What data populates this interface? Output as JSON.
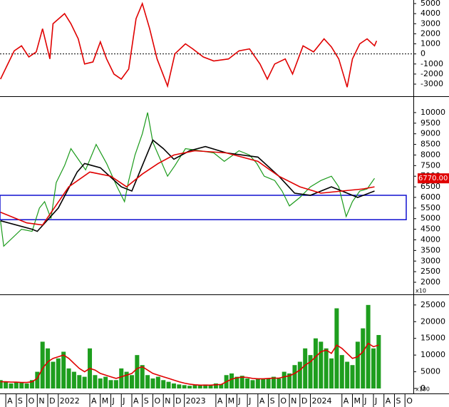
{
  "chart_data": [
    {
      "type": "line",
      "xlim": [
        -0.55,
        38.8
      ],
      "ylim": [
        -3990,
        5355
      ],
      "yticks": [
        5000,
        4000,
        3000,
        2000,
        1000,
        0,
        -1000,
        -2000,
        -3000
      ],
      "zero_line": true,
      "series": [
        {
          "color": "#e00000",
          "x": [
            -0.5,
            0.1,
            0.8,
            1.5,
            2.2,
            2.9,
            3.5,
            4.2,
            4.5,
            5.6,
            6.2,
            6.9,
            7.5,
            8.3,
            9,
            9.6,
            10.3,
            11,
            11.7,
            12.4,
            13,
            13.7,
            14.4,
            15.4,
            16.1,
            17.1,
            17.8,
            18.8,
            19.8,
            21.2,
            22.2,
            23.2,
            24.2,
            24.9,
            25.6,
            26.6,
            27.3,
            28.3,
            29.3,
            30.3,
            31,
            31.7,
            32.5,
            33,
            33.7,
            34.4,
            35.1,
            35.3
          ],
          "values": [
            -2500,
            -1200,
            300,
            800,
            -300,
            200,
            2500,
            -500,
            3000,
            4000,
            3000,
            1500,
            -1000,
            -800,
            1200,
            -500,
            -2000,
            -2500,
            -1500,
            3500,
            5000,
            2500,
            -500,
            -3200,
            0,
            1000,
            500,
            -300,
            -700,
            -500,
            300,
            500,
            -1000,
            -2500,
            -1000,
            -500,
            -2000,
            800,
            200,
            1500,
            700,
            -500,
            -3300,
            -500,
            1000,
            1500,
            800,
            1300
          ]
        }
      ]
    },
    {
      "type": "line",
      "xlim": [
        -0.55,
        38.8
      ],
      "ylim": [
        1530,
        10670
      ],
      "yticks": [
        10000,
        9500,
        9000,
        8500,
        8000,
        7500,
        7000,
        6500,
        6000,
        5500,
        5000,
        4500,
        4000,
        3500,
        3000,
        2500,
        2000
      ],
      "scale_label": "x10",
      "last_price_label": "6770.00",
      "highlight_range": [
        4950,
        6100
      ],
      "highlight_color": "#1010d0",
      "series": [
        {
          "color": "#1a9a1a",
          "x": [
            -0.5,
            -0.2,
            1.5,
            2.5,
            3.2,
            3.7,
            4.3,
            4.8,
            5.6,
            6.2,
            6.9,
            7.6,
            8.6,
            9.6,
            10.6,
            11.3,
            11.7,
            12.3,
            13,
            13.5,
            14,
            14.7,
            15.4,
            16.1,
            17.1,
            18.5,
            19.8,
            20.8,
            22.2,
            23.2,
            23.9,
            24.6,
            25.6,
            26.3,
            27,
            28,
            29,
            30,
            31,
            31.7,
            32.4,
            33,
            33.7,
            34.4,
            35.1
          ],
          "values": [
            4900,
            3700,
            4500,
            4400,
            5500,
            5800,
            5000,
            6700,
            7500,
            8300,
            7800,
            7300,
            8500,
            7600,
            6500,
            5800,
            6800,
            8000,
            9000,
            10000,
            8600,
            7800,
            7000,
            7500,
            8300,
            8200,
            8100,
            7700,
            8200,
            8000,
            7600,
            7000,
            6800,
            6300,
            5600,
            6000,
            6500,
            6800,
            7000,
            6500,
            5100,
            5800,
            6300,
            6400,
            6900
          ]
        },
        {
          "color": "#000000",
          "x": [
            -0.5,
            2.5,
            3,
            5,
            6.8,
            7.5,
            9,
            11,
            12,
            13,
            14,
            15,
            16,
            17.5,
            19,
            21,
            24,
            26,
            27.5,
            29,
            31,
            32,
            33.5,
            35.1
          ],
          "values": [
            4900,
            4500,
            4400,
            5500,
            7200,
            7600,
            7400,
            6500,
            6300,
            7500,
            8700,
            8300,
            7800,
            8200,
            8400,
            8100,
            7900,
            7000,
            6200,
            6100,
            6500,
            6300,
            6000,
            6300
          ]
        },
        {
          "color": "#e00000",
          "x": [
            -0.5,
            2,
            3.5,
            6,
            8,
            10,
            11.5,
            13,
            14.5,
            16,
            18,
            21,
            24,
            26,
            28,
            30,
            32,
            34,
            35.1
          ],
          "values": [
            5300,
            4800,
            4700,
            6500,
            7200,
            7000,
            6500,
            7100,
            7600,
            8000,
            8200,
            8100,
            7700,
            7000,
            6500,
            6200,
            6300,
            6400,
            6500
          ]
        }
      ]
    },
    {
      "type": "bar",
      "xlim": [
        -0.55,
        38.8
      ],
      "ylim": [
        -640,
        27100
      ],
      "yticks": [
        25000,
        20000,
        15000,
        10000,
        5000,
        0
      ],
      "scale_label": "x100",
      "xticks": [
        {
          "value": 0,
          "label": "A"
        },
        {
          "value": 1,
          "label": "S"
        },
        {
          "value": 2,
          "label": "O"
        },
        {
          "value": 3,
          "label": "N"
        },
        {
          "value": 4,
          "label": "D"
        },
        {
          "value": 5,
          "label": "2022"
        },
        {
          "value": 8,
          "label": "A"
        },
        {
          "value": 9,
          "label": "M"
        },
        {
          "value": 10,
          "label": "J"
        },
        {
          "value": 11,
          "label": "J"
        },
        {
          "value": 12,
          "label": "A"
        },
        {
          "value": 13,
          "label": "S"
        },
        {
          "value": 14,
          "label": "O"
        },
        {
          "value": 15,
          "label": "N"
        },
        {
          "value": 16,
          "label": "D"
        },
        {
          "value": 17,
          "label": "2023"
        },
        {
          "value": 20,
          "label": "A"
        },
        {
          "value": 21,
          "label": "M"
        },
        {
          "value": 22,
          "label": "J"
        },
        {
          "value": 23,
          "label": "J"
        },
        {
          "value": 24,
          "label": "A"
        },
        {
          "value": 25,
          "label": "S"
        },
        {
          "value": 26,
          "label": "O"
        },
        {
          "value": 27,
          "label": "N"
        },
        {
          "value": 28,
          "label": "D"
        },
        {
          "value": 29,
          "label": "2024"
        },
        {
          "value": 32,
          "label": "A"
        },
        {
          "value": 33,
          "label": "M"
        },
        {
          "value": 34,
          "label": "J"
        },
        {
          "value": 35,
          "label": "J"
        },
        {
          "value": 36,
          "label": "A"
        },
        {
          "value": 37,
          "label": "S"
        },
        {
          "value": 38,
          "label": "O"
        }
      ],
      "x": [
        -0.5,
        0,
        0.5,
        1,
        1.5,
        2,
        2.5,
        3,
        3.5,
        4,
        4.5,
        5,
        5.5,
        6,
        6.5,
        7,
        7.5,
        8,
        8.5,
        9,
        9.5,
        10,
        10.5,
        11,
        11.5,
        12,
        12.5,
        13,
        13.5,
        14,
        14.5,
        15,
        15.5,
        16,
        16.5,
        17,
        17.5,
        18,
        18.5,
        19,
        19.5,
        20,
        20.5,
        21,
        21.5,
        22,
        22.5,
        23,
        23.5,
        24,
        24.5,
        25,
        25.5,
        26,
        26.5,
        27,
        27.5,
        28,
        28.5,
        29,
        29.5,
        30,
        30.5,
        31,
        31.5,
        32,
        32.5,
        33,
        33.5,
        34,
        34.5,
        35,
        35.5
      ],
      "series": [
        {
          "type": "bar",
          "color": "#1e9e1e",
          "values": [
            2500,
            2000,
            1500,
            2000,
            1800,
            1500,
            2500,
            5000,
            14000,
            12000,
            8000,
            9000,
            11000,
            6000,
            5000,
            4000,
            3500,
            12000,
            4000,
            3000,
            3500,
            2500,
            2500,
            6000,
            5000,
            4000,
            10000,
            7000,
            4000,
            3000,
            3500,
            2500,
            2000,
            1500,
            1200,
            1000,
            800,
            1000,
            900,
            1200,
            1000,
            1500,
            1300,
            4000,
            4500,
            3500,
            3800,
            3000,
            2500,
            3000,
            2800,
            3000,
            3500,
            3000,
            5000,
            4500,
            7000,
            8000,
            12000,
            10000,
            15000,
            14000,
            12000,
            9000,
            24000,
            10000,
            8000,
            7000,
            14000,
            18000,
            25000,
            12000,
            16000
          ]
        },
        {
          "type": "line",
          "color": "#e00000",
          "values": [
            2000,
            2000,
            1900,
            1900,
            1800,
            1800,
            2000,
            3000,
            6000,
            8000,
            9000,
            9500,
            10000,
            9000,
            7500,
            6000,
            5000,
            6000,
            5500,
            4500,
            4000,
            3500,
            3000,
            3500,
            4000,
            4500,
            6000,
            6500,
            5500,
            4500,
            4000,
            3500,
            3000,
            2500,
            2000,
            1600,
            1300,
            1100,
            1000,
            1000,
            1000,
            1100,
            1200,
            2000,
            2800,
            3200,
            3400,
            3300,
            3000,
            2900,
            2900,
            3000,
            3100,
            3100,
            3500,
            3800,
            4500,
            5500,
            7000,
            8000,
            9500,
            11000,
            11500,
            10500,
            13000,
            12000,
            10500,
            9000,
            9500,
            11000,
            13500,
            12500,
            13000
          ]
        }
      ]
    }
  ]
}
